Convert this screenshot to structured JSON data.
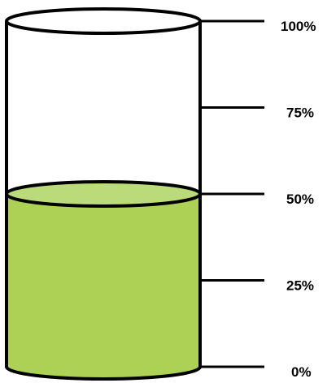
{
  "gauge": {
    "fill_level_percent": 50,
    "ticks": [
      {
        "value": 100,
        "label": "100%"
      },
      {
        "value": 75,
        "label": "75%"
      },
      {
        "value": 50,
        "label": "50%"
      },
      {
        "value": 25,
        "label": "25%"
      },
      {
        "value": 0,
        "label": "0%"
      }
    ],
    "colors": {
      "liquid": "#acd154",
      "liquid_top": "#bbdb7b",
      "outline": "#000000",
      "background": "#ffffff"
    }
  }
}
